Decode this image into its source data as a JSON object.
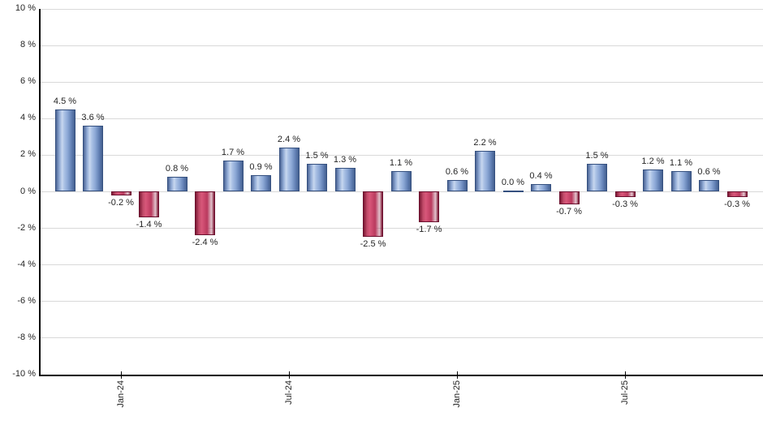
{
  "chart_data": {
    "type": "bar",
    "title": "",
    "xlabel": "",
    "ylabel": "",
    "grid": true,
    "legend": false,
    "ylim": [
      -10,
      10
    ],
    "y_tick_step": 2,
    "y_tick_labels": [
      "10 %",
      "8 %",
      "6 %",
      "4 %",
      "2 %",
      "0 %",
      "-2 %",
      "-4 %",
      "-6 %",
      "-8 %",
      "-10 %"
    ],
    "y_tick_values": [
      10,
      8,
      6,
      4,
      2,
      0,
      -2,
      -4,
      -6,
      -8,
      -10
    ],
    "x_tick_labels": [
      {
        "label": "Jan-24",
        "bar_index": 2
      },
      {
        "label": "Jul-24",
        "bar_index": 8
      },
      {
        "label": "Jan-25",
        "bar_index": 14
      },
      {
        "label": "Jul-25",
        "bar_index": 20
      }
    ],
    "values": [
      4.5,
      3.6,
      -0.2,
      -1.4,
      0.8,
      -2.4,
      1.7,
      0.9,
      2.4,
      1.5,
      1.3,
      -2.5,
      1.1,
      -1.7,
      0.6,
      2.2,
      0.0,
      0.4,
      -0.7,
      1.5,
      -0.3,
      1.2,
      1.1,
      0.6,
      -0.3
    ],
    "bar_labels": [
      "4.5 %",
      "3.6 %",
      "-0.2 %",
      "-1.4 %",
      "0.8 %",
      "-2.4 %",
      "1.7 %",
      "0.9 %",
      "2.4 %",
      "1.5 %",
      "1.3 %",
      "-2.5 %",
      "1.1 %",
      "-1.7 %",
      "0.6 %",
      "2.2 %",
      "0.0 %",
      "0.4 %",
      "-0.7 %",
      "1.5 %",
      "-0.3 %",
      "1.2 %",
      "1.1 %",
      "0.6 %",
      "-0.3 %"
    ],
    "colors": {
      "positive_bar": "#7e9ccd",
      "positive_bar_highlight": "#c7d7ef",
      "positive_bar_edge": "#44608f",
      "negative_bar": "#c2446a",
      "negative_bar_highlight": "#d8577a",
      "negative_bar_edge": "#7c1331",
      "gridline": "#d9d9d9",
      "axis": "#000000",
      "text": "#262626",
      "background": "#ffffff"
    }
  }
}
